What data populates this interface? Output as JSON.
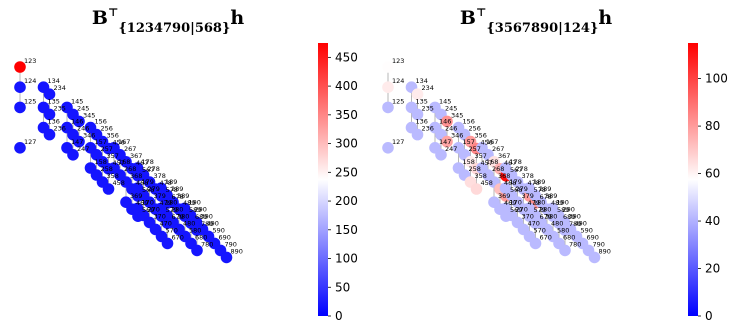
{
  "chart_data": [
    {
      "type": "scatter",
      "title_main": "B",
      "title_sup": "⊤",
      "title_sub": "{1234790|568}",
      "title_tail": "h",
      "colorbar": {
        "min": 0,
        "max": 475,
        "ticks": [
          0,
          50,
          100,
          150,
          200,
          250,
          300,
          350,
          400,
          450
        ]
      },
      "node_labels": [
        "123",
        "124",
        "134",
        "234",
        "125",
        "135",
        "235",
        "145",
        "245",
        "345",
        "136",
        "236",
        "146",
        "246",
        "346",
        "156",
        "256",
        "356",
        "456",
        "127",
        "147",
        "247",
        "157",
        "257",
        "357",
        "457",
        "167",
        "267",
        "367",
        "467",
        "567",
        "158",
        "258",
        "358",
        "458",
        "168",
        "268",
        "368",
        "468",
        "568",
        "178",
        "278",
        "378",
        "478",
        "578",
        "678",
        "369",
        "469",
        "569",
        "179",
        "279",
        "379",
        "479",
        "579",
        "679",
        "189",
        "289",
        "389",
        "489",
        "589",
        "689",
        "789",
        "170",
        "270",
        "370",
        "470",
        "570",
        "670",
        "180",
        "280",
        "380",
        "480",
        "580",
        "680",
        "780",
        "190",
        "290",
        "390",
        "490",
        "590",
        "690",
        "790",
        "890"
      ],
      "highlighted": [
        {
          "label": "123",
          "value": 475
        }
      ],
      "base_value": 20
    },
    {
      "type": "scatter",
      "title_main": "B",
      "title_sup": "⊤",
      "title_sub": "{3567890|124}",
      "title_tail": "h",
      "colorbar": {
        "min": 0,
        "max": 115,
        "ticks": [
          0,
          20,
          40,
          60,
          80,
          100
        ]
      },
      "node_labels": [
        "123",
        "124",
        "134",
        "234",
        "125",
        "135",
        "235",
        "145",
        "245",
        "345",
        "136",
        "236",
        "146",
        "246",
        "346",
        "156",
        "256",
        "356",
        "456",
        "127",
        "147",
        "247",
        "157",
        "257",
        "357",
        "457",
        "167",
        "267",
        "367",
        "467",
        "567",
        "158",
        "258",
        "358",
        "458",
        "168",
        "268",
        "368",
        "468",
        "568",
        "178",
        "278",
        "378",
        "478",
        "578",
        "678",
        "369",
        "469",
        "569",
        "179",
        "279",
        "379",
        "479",
        "579",
        "679",
        "189",
        "289",
        "389",
        "489",
        "589",
        "689",
        "789",
        "170",
        "270",
        "370",
        "470",
        "570",
        "670",
        "180",
        "280",
        "380",
        "480",
        "580",
        "680",
        "780",
        "190",
        "290",
        "390",
        "490",
        "590",
        "690",
        "790",
        "890"
      ],
      "highlighted": [
        {
          "label": "567",
          "value": 112
        },
        {
          "label": "345",
          "value": 82
        },
        {
          "label": "456",
          "value": 85
        },
        {
          "label": "356",
          "value": 80
        },
        {
          "label": "346",
          "value": 78
        },
        {
          "label": "568",
          "value": 80
        },
        {
          "label": "578",
          "value": 80
        },
        {
          "label": "678",
          "value": 82
        },
        {
          "label": "467",
          "value": 75
        },
        {
          "label": "468",
          "value": 72
        },
        {
          "label": "123",
          "value": 58
        },
        {
          "label": "124",
          "value": 62
        },
        {
          "label": "234",
          "value": 62
        },
        {
          "label": "358",
          "value": 65
        },
        {
          "label": "458",
          "value": 66
        },
        {
          "label": "367",
          "value": 64
        },
        {
          "label": "357",
          "value": 62
        },
        {
          "label": "457",
          "value": 66
        }
      ],
      "base_value": 42
    }
  ]
}
